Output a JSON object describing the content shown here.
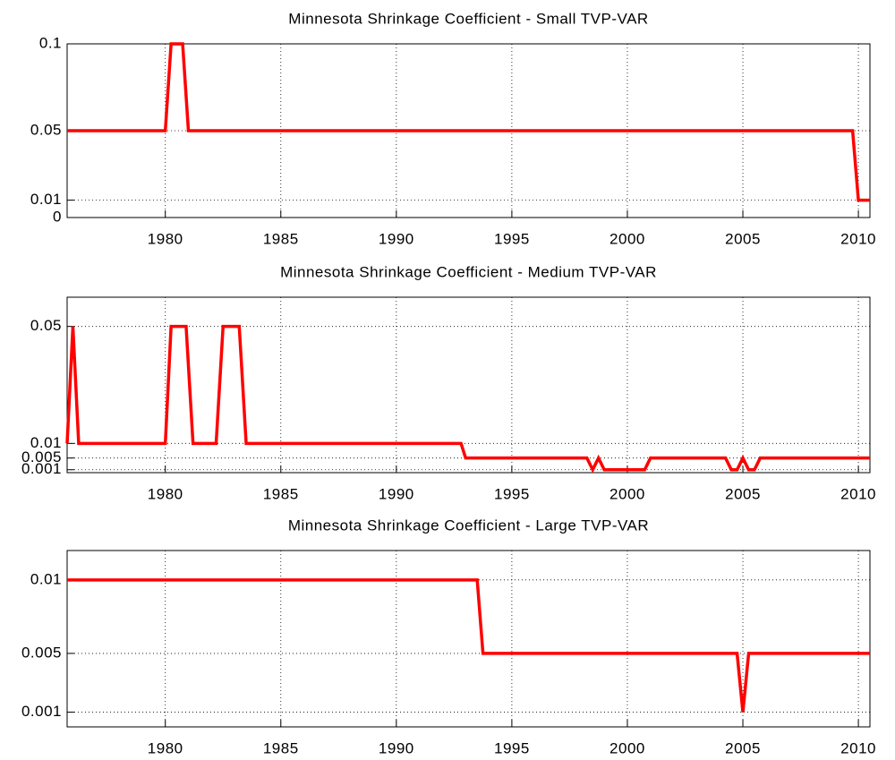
{
  "chart_data": [
    {
      "type": "line",
      "title": "Minnesota Shrinkage Coefficient - Small TVP-VAR",
      "x": [
        1975.75,
        1980.0,
        1980.25,
        1980.75,
        1981.0,
        2009.75,
        2010.0,
        2010.5
      ],
      "values": [
        0.05,
        0.05,
        0.1,
        0.1,
        0.05,
        0.05,
        0.01,
        0.01
      ],
      "color": "#ff0000",
      "xlim": [
        1975.75,
        2010.5
      ],
      "ylim": [
        0,
        0.1
      ],
      "xticks": [
        1980,
        1985,
        1990,
        1995,
        2000,
        2005,
        2010
      ],
      "yticks": [
        0,
        0.01,
        0.05,
        0.1
      ],
      "grid": true
    },
    {
      "type": "line",
      "title": "Minnesota Shrinkage Coefficient - Medium TVP-VAR",
      "x": [
        1975.75,
        1976.0,
        1976.25,
        1980.0,
        1980.25,
        1980.9,
        1981.2,
        1982.2,
        1982.5,
        1983.2,
        1983.5,
        1992.8,
        1993.0,
        1998.25,
        1998.5,
        1998.75,
        1999.0,
        2000.75,
        2001.0,
        2004.25,
        2004.5,
        2004.75,
        2005.0,
        2005.25,
        2005.5,
        2005.75,
        2006.0,
        2010.5
      ],
      "values": [
        0.01,
        0.05,
        0.01,
        0.01,
        0.05,
        0.05,
        0.01,
        0.01,
        0.05,
        0.05,
        0.01,
        0.01,
        0.005,
        0.005,
        0.001,
        0.005,
        0.001,
        0.001,
        0.005,
        0.005,
        0.001,
        0.001,
        0.005,
        0.001,
        0.001,
        0.005,
        0.005,
        0.005
      ],
      "color": "#ff0000",
      "xlim": [
        1975.75,
        2010.5
      ],
      "ylim": [
        0,
        0.06
      ],
      "xticks": [
        1980,
        1985,
        1990,
        1995,
        2000,
        2005,
        2010
      ],
      "yticks": [
        0.001,
        0.005,
        0.01,
        0.05
      ],
      "grid": true
    },
    {
      "type": "line",
      "title": "Minnesota Shrinkage Coefficient - Large TVP-VAR",
      "x": [
        1975.75,
        1993.5,
        1993.75,
        2004.75,
        2005.0,
        2005.25,
        2010.5
      ],
      "values": [
        0.01,
        0.01,
        0.005,
        0.005,
        0.001,
        0.005,
        0.005
      ],
      "color": "#ff0000",
      "xlim": [
        1975.75,
        2010.5
      ],
      "ylim": [
        0,
        0.012
      ],
      "xticks": [
        1980,
        1985,
        1990,
        1995,
        2000,
        2005,
        2010
      ],
      "yticks": [
        0.001,
        0.005,
        0.01
      ],
      "grid": true
    }
  ]
}
